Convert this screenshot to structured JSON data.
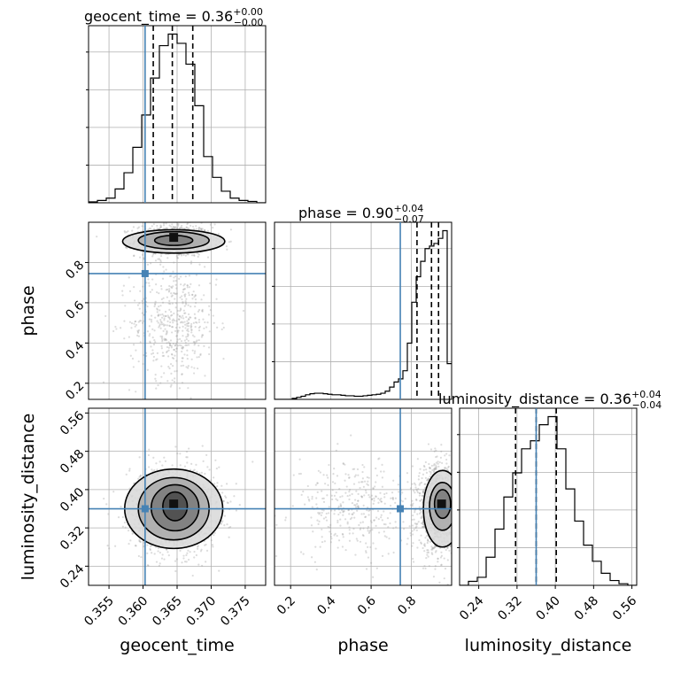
{
  "chart_data": {
    "type": "corner",
    "grid": true,
    "colors": {
      "truth": "#4682b4",
      "hist": "#000000",
      "points": "#9a9a9a",
      "density_dark": "#111111"
    },
    "parameters": [
      {
        "name": "geocent_time",
        "axis_label": "geocent_time",
        "title_prefix": "geocent_time = 0.36",
        "title_plus": "+0.00",
        "title_minus": "−0.00",
        "range": [
          0.352,
          0.378
        ],
        "ticks": [
          0.355,
          0.36,
          0.365,
          0.37,
          0.375
        ],
        "tick_labels": [
          "0.355",
          "0.360",
          "0.365",
          "0.370",
          "0.375"
        ],
        "truth": 0.3603,
        "quantiles": [
          0.3615,
          0.3643,
          0.3673
        ],
        "hist_edges_start": 0.352,
        "hist_bin_width": 0.0013,
        "hist_counts": [
          0.2,
          0.5,
          1.0,
          3.0,
          6.5,
          12.0,
          19.0,
          27.0,
          34.0,
          36.5,
          34.5,
          30.0,
          21.0,
          10.0,
          5.5,
          2.5,
          1.0,
          0.5,
          0.3,
          0.0
        ]
      },
      {
        "name": "phase",
        "axis_label": "phase",
        "title_prefix": "phase = 0.90",
        "title_plus": "+0.04",
        "title_minus": "−0.07",
        "range": [
          0.12,
          1.0
        ],
        "ticks": [
          0.2,
          0.4,
          0.6,
          0.8
        ],
        "tick_labels": [
          "0.2",
          "0.4",
          "0.6",
          "0.8"
        ],
        "truth": 0.745,
        "quantiles": [
          0.828,
          0.9,
          0.935
        ],
        "hist_edges_start": 0.12,
        "hist_bin_width": 0.022,
        "hist_counts": [
          0,
          0,
          0,
          0,
          0.2,
          0.4,
          0.6,
          0.9,
          1.1,
          1.2,
          1.2,
          1.1,
          1.0,
          0.9,
          0.9,
          0.8,
          0.7,
          0.7,
          0.6,
          0.6,
          0.7,
          0.8,
          0.9,
          1.0,
          1.2,
          1.6,
          2.4,
          3.4,
          4.0,
          5.6,
          11.0,
          19.0,
          24.0,
          27.0,
          29.5,
          30.0,
          30.5,
          31.5,
          33.0,
          7.0
        ]
      },
      {
        "name": "luminosity_distance",
        "axis_label": "luminosity_distance",
        "title_prefix": "luminosity_distance = 0.36",
        "title_plus": "+0.04",
        "title_minus": "−0.04",
        "range": [
          0.2,
          0.57
        ],
        "ticks": [
          0.24,
          0.32,
          0.4,
          0.48,
          0.56
        ],
        "tick_labels": [
          "0.24",
          "0.32",
          "0.40",
          "0.48",
          "0.56"
        ],
        "truth": 0.36,
        "quantiles": [
          0.317,
          0.36,
          0.402
        ],
        "hist_edges_start": 0.2,
        "hist_bin_width": 0.0185,
        "hist_counts": [
          0.0,
          0.5,
          1.0,
          3.5,
          7.0,
          11.0,
          14.0,
          17.0,
          18.0,
          20.0,
          21.0,
          17.0,
          12.0,
          8.0,
          5.0,
          3.0,
          1.5,
          0.6,
          0.2,
          0.0
        ]
      }
    ],
    "pairs": [
      {
        "x": "geocent_time",
        "y": "phase",
        "clusters": [
          {
            "cx": 0.3645,
            "cy": 0.91,
            "sx": 0.0028,
            "sy": 0.04,
            "n": 900
          },
          {
            "cx": 0.3645,
            "cy": 0.5,
            "sx": 0.0032,
            "sy": 0.14,
            "n": 500
          }
        ],
        "contours": [
          {
            "cx": 0.3645,
            "cy": 0.91,
            "rx": 0.0028,
            "ry": 0.025
          },
          {
            "cx": 0.3645,
            "cy": 0.91,
            "rx": 0.0052,
            "ry": 0.043
          },
          {
            "cx": 0.3645,
            "cy": 0.905,
            "rx": 0.0075,
            "ry": 0.058
          }
        ],
        "peak": {
          "x": 0.3645,
          "y": 0.925
        }
      },
      {
        "x": "geocent_time",
        "y": "luminosity_distance",
        "clusters": [
          {
            "cx": 0.3645,
            "cy": 0.36,
            "sx": 0.0032,
            "sy": 0.045,
            "n": 1400
          }
        ],
        "contours": [
          {
            "cx": 0.3647,
            "cy": 0.365,
            "rx": 0.0018,
            "ry": 0.03
          },
          {
            "cx": 0.3647,
            "cy": 0.362,
            "rx": 0.0035,
            "ry": 0.048
          },
          {
            "cx": 0.3645,
            "cy": 0.36,
            "rx": 0.0052,
            "ry": 0.065
          },
          {
            "cx": 0.3645,
            "cy": 0.36,
            "rx": 0.0072,
            "ry": 0.083
          }
        ],
        "peak": {
          "x": 0.3645,
          "y": 0.37
        }
      },
      {
        "x": "phase",
        "y": "luminosity_distance",
        "clusters": [
          {
            "cx": 0.93,
            "cy": 0.36,
            "sx": 0.05,
            "sy": 0.045,
            "n": 1100
          },
          {
            "cx": 0.52,
            "cy": 0.36,
            "sx": 0.15,
            "sy": 0.05,
            "n": 350
          }
        ],
        "contours": [
          {
            "cx": 0.955,
            "cy": 0.37,
            "rx": 0.04,
            "ry": 0.03
          },
          {
            "cx": 0.955,
            "cy": 0.365,
            "rx": 0.065,
            "ry": 0.05
          },
          {
            "cx": 0.955,
            "cy": 0.36,
            "rx": 0.095,
            "ry": 0.08
          }
        ],
        "peak": {
          "x": 0.95,
          "y": 0.37
        }
      }
    ]
  }
}
